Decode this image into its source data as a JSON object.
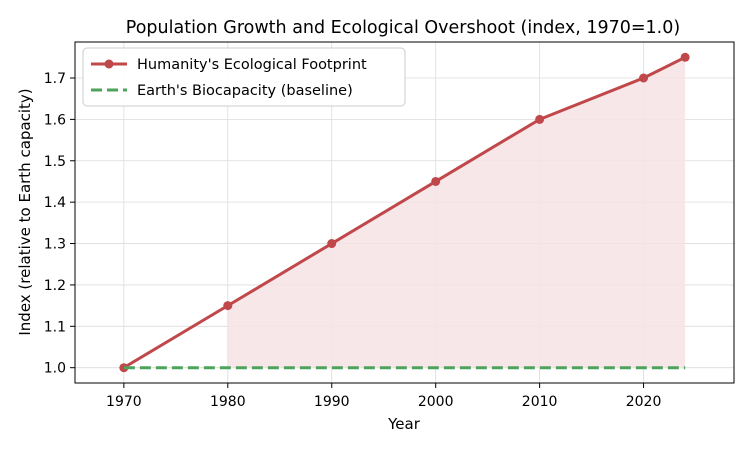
{
  "chart_data": {
    "type": "line",
    "title": "Population Growth and Ecological Overshoot (index, 1970=1.0)",
    "xlabel": "Year",
    "ylabel": "Index (relative to Earth capacity)",
    "x": [
      1970,
      1980,
      1990,
      2000,
      2010,
      2020,
      2024
    ],
    "xticks": [
      1970,
      1980,
      1990,
      2000,
      2010,
      2020
    ],
    "yticks": [
      "1.0",
      "1.1",
      "1.2",
      "1.3",
      "1.4",
      "1.5",
      "1.6",
      "1.7"
    ],
    "xlim": [
      1965.3,
      2028.7
    ],
    "ylim": [
      0.963,
      1.787
    ],
    "grid": true,
    "legend_position": "upper-left",
    "series": [
      {
        "name": "Humanity's Ecological Footprint",
        "values": [
          1.0,
          1.15,
          1.3,
          1.45,
          1.6,
          1.7,
          1.75
        ],
        "color": "#c0474a",
        "style": "solid-with-markers"
      },
      {
        "name": "Earth's Biocapacity (baseline)",
        "values": [
          1.0,
          1.0,
          1.0,
          1.0,
          1.0,
          1.0,
          1.0
        ],
        "color": "#4ea35a",
        "style": "dashed"
      }
    ],
    "shaded_region": {
      "from_x": 1980,
      "to_x": 2024,
      "between": [
        "Humanity's Ecological Footprint",
        "Earth's Biocapacity (baseline)"
      ],
      "color": "#f6e3e5"
    }
  }
}
